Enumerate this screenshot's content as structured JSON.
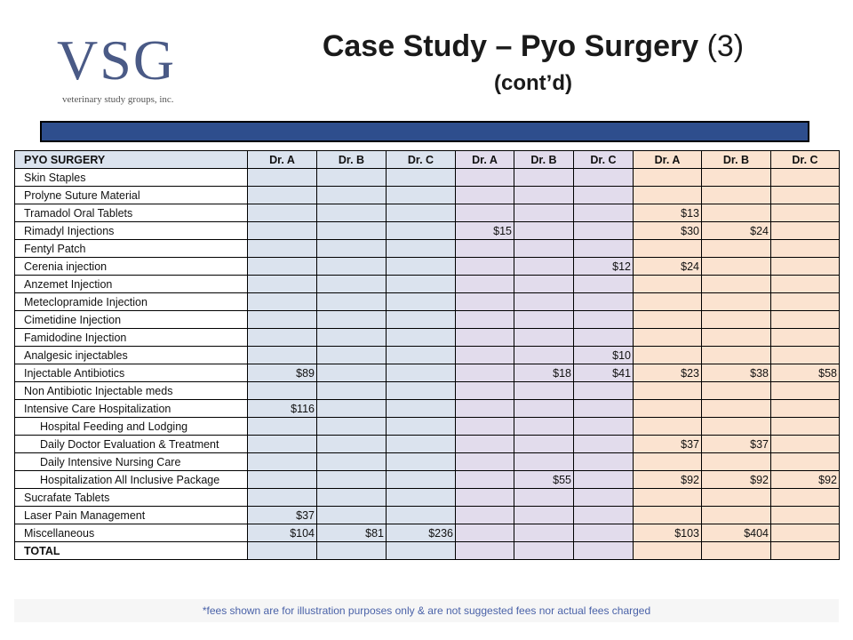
{
  "logo": {
    "text": "VSG",
    "subtitle": "veterinary study groups, inc."
  },
  "title": {
    "main": "Case Study – Pyo Surgery",
    "number": "(3)",
    "sub": "(cont’d)"
  },
  "table": {
    "header_label": "PYO SURGERY",
    "columns": [
      "Dr. A",
      "Dr. B",
      "Dr. C",
      "Dr. A",
      "Dr. B",
      "Dr. C",
      "Dr. A",
      "Dr. B",
      "Dr. C"
    ],
    "rows": [
      {
        "label": "Skin Staples",
        "indent": false,
        "values": [
          "",
          "",
          "",
          "",
          "",
          "",
          "",
          "",
          ""
        ]
      },
      {
        "label": "Prolyne Suture Material",
        "indent": false,
        "values": [
          "",
          "",
          "",
          "",
          "",
          "",
          "",
          "",
          ""
        ]
      },
      {
        "label": "Tramadol Oral Tablets",
        "indent": false,
        "values": [
          "",
          "",
          "",
          "",
          "",
          "",
          "$13",
          "",
          ""
        ]
      },
      {
        "label": "Rimadyl Injections",
        "indent": false,
        "values": [
          "",
          "",
          "",
          "$15",
          "",
          "",
          "$30",
          "$24",
          ""
        ]
      },
      {
        "label": "Fentyl Patch",
        "indent": false,
        "values": [
          "",
          "",
          "",
          "",
          "",
          "",
          "",
          "",
          ""
        ]
      },
      {
        "label": "Cerenia injection",
        "indent": false,
        "values": [
          "",
          "",
          "",
          "",
          "",
          "$12",
          "$24",
          "",
          ""
        ]
      },
      {
        "label": "Anzemet Injection",
        "indent": false,
        "values": [
          "",
          "",
          "",
          "",
          "",
          "",
          "",
          "",
          ""
        ]
      },
      {
        "label": "Meteclopramide Injection",
        "indent": false,
        "values": [
          "",
          "",
          "",
          "",
          "",
          "",
          "",
          "",
          ""
        ]
      },
      {
        "label": "Cimetidine Injection",
        "indent": false,
        "values": [
          "",
          "",
          "",
          "",
          "",
          "",
          "",
          "",
          ""
        ]
      },
      {
        "label": "Famidodine Injection",
        "indent": false,
        "values": [
          "",
          "",
          "",
          "",
          "",
          "",
          "",
          "",
          ""
        ]
      },
      {
        "label": "Analgesic injectables",
        "indent": false,
        "values": [
          "",
          "",
          "",
          "",
          "",
          "$10",
          "",
          "",
          ""
        ]
      },
      {
        "label": "Injectable Antibiotics",
        "indent": false,
        "values": [
          "$89",
          "",
          "",
          "",
          "$18",
          "$41",
          "$23",
          "$38",
          "$58"
        ]
      },
      {
        "label": "Non Antibiotic Injectable meds",
        "indent": false,
        "values": [
          "",
          "",
          "",
          "",
          "",
          "",
          "",
          "",
          ""
        ]
      },
      {
        "label": "Intensive Care Hospitalization",
        "indent": false,
        "values": [
          "$116",
          "",
          "",
          "",
          "",
          "",
          "",
          "",
          ""
        ]
      },
      {
        "label": "Hospital Feeding and Lodging",
        "indent": true,
        "values": [
          "",
          "",
          "",
          "",
          "",
          "",
          "",
          "",
          ""
        ]
      },
      {
        "label": "Daily Doctor Evaluation & Treatment",
        "indent": true,
        "values": [
          "",
          "",
          "",
          "",
          "",
          "",
          "$37",
          "$37",
          ""
        ]
      },
      {
        "label": "Daily Intensive Nursing Care",
        "indent": true,
        "values": [
          "",
          "",
          "",
          "",
          "",
          "",
          "",
          "",
          ""
        ]
      },
      {
        "label": "Hospitalization All Inclusive Package",
        "indent": true,
        "values": [
          "",
          "",
          "",
          "",
          "$55",
          "",
          "$92",
          "$92",
          "$92"
        ]
      },
      {
        "label": "Sucrafate Tablets",
        "indent": false,
        "values": [
          "",
          "",
          "",
          "",
          "",
          "",
          "",
          "",
          ""
        ]
      },
      {
        "label": "Laser Pain Management",
        "indent": false,
        "values": [
          "$37",
          "",
          "",
          "",
          "",
          "",
          "",
          "",
          ""
        ]
      },
      {
        "label": "Miscellaneous",
        "indent": false,
        "values": [
          "$104",
          "$81",
          "$236",
          "",
          "",
          "",
          "$103",
          "$404",
          ""
        ]
      },
      {
        "label": "TOTAL",
        "indent": false,
        "values": [
          "",
          "",
          "",
          "",
          "",
          "",
          "",
          "",
          ""
        ]
      }
    ]
  },
  "footer": "*fees shown are for illustration purposes only & are not suggested fees nor actual fees charged",
  "colors": {
    "group1": "#dbe3ee",
    "group2": "#e2dcec",
    "group3": "#fbe3d0",
    "bar": "#2e4e8d"
  }
}
